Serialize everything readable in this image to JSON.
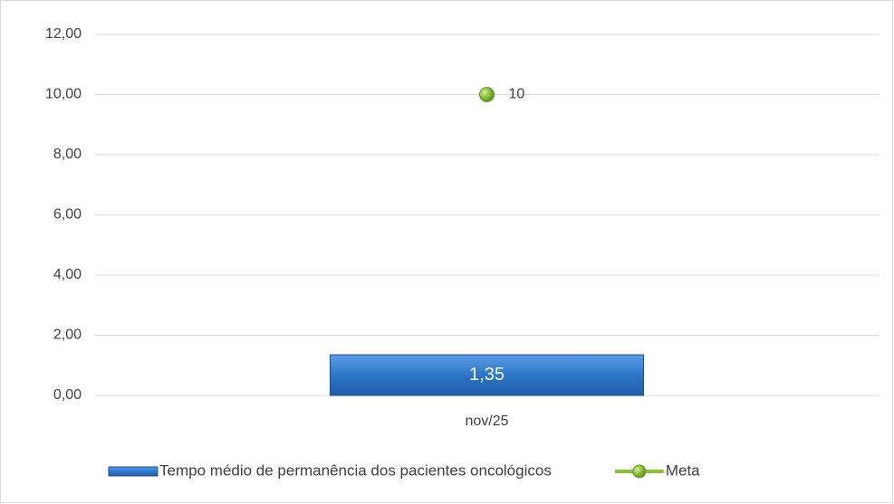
{
  "chart_data": {
    "type": "bar",
    "categories": [
      "nov/25"
    ],
    "series": [
      {
        "name": "Tempo médio de permanência dos pacientes oncológicos",
        "type": "bar",
        "color": "#2e75c6",
        "values": [
          1.35
        ],
        "value_labels": [
          "1,35"
        ]
      },
      {
        "name": "Meta",
        "type": "line",
        "color": "#8cbf3a",
        "values": [
          10
        ]
      }
    ],
    "ylim": [
      0,
      12
    ],
    "yticks": [
      {
        "value": 0,
        "label": "0,00"
      },
      {
        "value": 2,
        "label": "2,00"
      },
      {
        "value": 4,
        "label": "4,00"
      },
      {
        "value": 6,
        "label": "6,00"
      },
      {
        "value": 8,
        "label": "8,00"
      },
      {
        "value": 10,
        "label": "10,00"
      },
      {
        "value": 12,
        "label": "12,00"
      }
    ],
    "grid": true,
    "legend": "bottom"
  }
}
